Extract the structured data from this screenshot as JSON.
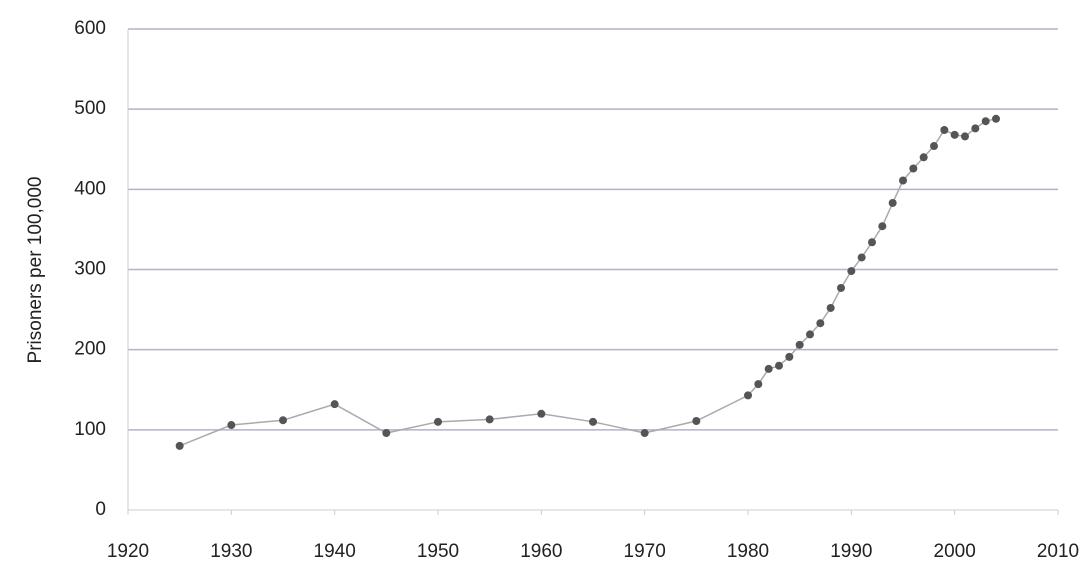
{
  "chart_data": {
    "type": "line",
    "y_label": "Prisoners per 100,000",
    "x": [
      1925,
      1930,
      1935,
      1940,
      1945,
      1950,
      1955,
      1960,
      1965,
      1970,
      1975,
      1980,
      1981,
      1982,
      1983,
      1984,
      1985,
      1986,
      1987,
      1988,
      1989,
      1990,
      1991,
      1992,
      1993,
      1994,
      1995,
      1996,
      1997,
      1998,
      1999,
      2000,
      2001,
      2002,
      2003,
      2004
    ],
    "values": [
      80,
      106,
      112,
      132,
      96,
      110,
      113,
      120,
      110,
      96,
      111,
      143,
      157,
      176,
      180,
      191,
      206,
      219,
      233,
      252,
      277,
      298,
      315,
      334,
      354,
      383,
      411,
      426,
      440,
      454,
      474,
      468,
      466,
      476,
      485,
      488
    ],
    "color": "#aaaaaa",
    "marker_color": "#555555",
    "xlim": [
      1920,
      2010
    ],
    "xticks": [
      1920,
      1930,
      1940,
      1950,
      1960,
      1970,
      1980,
      1990,
      2000,
      2010
    ],
    "ylim": [
      0,
      600
    ],
    "yticks": [
      0,
      100,
      200,
      300,
      400,
      500,
      600
    ],
    "grid": true
  }
}
